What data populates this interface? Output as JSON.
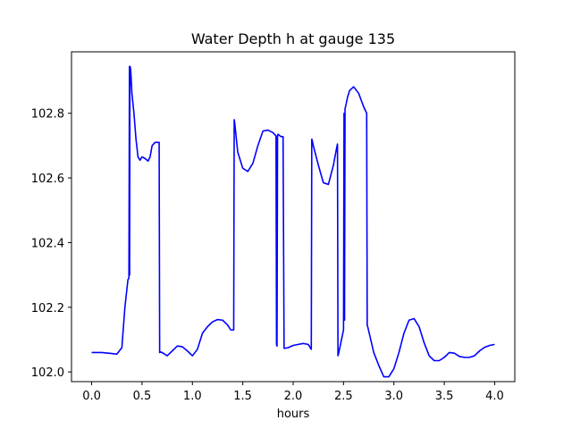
{
  "chart_data": {
    "type": "line",
    "title": "Water Depth h at gauge 135",
    "xlabel": "hours",
    "ylabel": "",
    "xlim": [
      -0.2,
      4.2
    ],
    "ylim": [
      101.97,
      102.99
    ],
    "xticks": [
      0.0,
      0.5,
      1.0,
      1.5,
      2.0,
      2.5,
      3.0,
      3.5,
      4.0
    ],
    "xtick_labels": [
      "0.0",
      "0.5",
      "1.0",
      "1.5",
      "2.0",
      "2.5",
      "3.0",
      "3.5",
      "4.0"
    ],
    "yticks": [
      102.0,
      102.2,
      102.4,
      102.6,
      102.8
    ],
    "ytick_labels": [
      "102.0",
      "102.2",
      "102.4",
      "102.6",
      "102.8"
    ],
    "grid": false,
    "series": [
      {
        "color": "#0000ff",
        "x": [
          0.0,
          0.1,
          0.2,
          0.25,
          0.3,
          0.33,
          0.36,
          0.37,
          0.375,
          0.377,
          0.38,
          0.385,
          0.39,
          0.4,
          0.42,
          0.44,
          0.46,
          0.48,
          0.5,
          0.53,
          0.56,
          0.58,
          0.6,
          0.63,
          0.65,
          0.67,
          0.675,
          0.678,
          0.68,
          0.7,
          0.75,
          0.8,
          0.85,
          0.9,
          0.95,
          1.0,
          1.05,
          1.1,
          1.15,
          1.2,
          1.25,
          1.3,
          1.35,
          1.38,
          1.4,
          1.41,
          1.415,
          1.42,
          1.45,
          1.5,
          1.55,
          1.6,
          1.65,
          1.7,
          1.75,
          1.8,
          1.83,
          1.835,
          1.84,
          1.845,
          1.85,
          1.87,
          1.88,
          1.9,
          1.91,
          1.915,
          1.95,
          2.0,
          2.05,
          2.1,
          2.15,
          2.18,
          2.185,
          2.19,
          2.2,
          2.25,
          2.3,
          2.35,
          2.4,
          2.43,
          2.44,
          2.445,
          2.45,
          2.48,
          2.5,
          2.505,
          2.51,
          2.515,
          2.52,
          2.54,
          2.56,
          2.6,
          2.65,
          2.7,
          2.73,
          2.735,
          2.74,
          2.8,
          2.85,
          2.9,
          2.95,
          3.0,
          3.05,
          3.1,
          3.15,
          3.2,
          3.25,
          3.3,
          3.35,
          3.4,
          3.45,
          3.5,
          3.55,
          3.6,
          3.65,
          3.7,
          3.75,
          3.8,
          3.85,
          3.9,
          3.95,
          4.0
        ],
        "y": [
          102.06,
          102.06,
          102.057,
          102.055,
          102.075,
          102.2,
          102.285,
          102.29,
          102.945,
          102.3,
          102.945,
          102.94,
          102.92,
          102.86,
          102.8,
          102.72,
          102.665,
          102.655,
          102.665,
          102.66,
          102.652,
          102.665,
          102.7,
          102.71,
          102.71,
          102.71,
          102.06,
          102.06,
          102.062,
          102.06,
          102.05,
          102.065,
          102.08,
          102.078,
          102.065,
          102.05,
          102.07,
          102.12,
          102.14,
          102.155,
          102.162,
          102.16,
          102.145,
          102.13,
          102.13,
          102.13,
          102.78,
          102.77,
          102.68,
          102.63,
          102.62,
          102.645,
          102.7,
          102.745,
          102.748,
          102.74,
          102.73,
          102.085,
          102.08,
          102.73,
          102.735,
          102.73,
          102.728,
          102.728,
          102.073,
          102.073,
          102.075,
          102.082,
          102.085,
          102.088,
          102.085,
          102.07,
          102.72,
          102.715,
          102.7,
          102.64,
          102.585,
          102.58,
          102.64,
          102.69,
          102.705,
          102.05,
          102.055,
          102.1,
          102.13,
          102.8,
          102.16,
          102.815,
          102.82,
          102.85,
          102.87,
          102.882,
          102.862,
          102.82,
          102.8,
          102.145,
          102.14,
          102.06,
          102.02,
          101.985,
          101.985,
          102.01,
          102.06,
          102.12,
          102.16,
          102.165,
          102.14,
          102.09,
          102.05,
          102.035,
          102.035,
          102.045,
          102.06,
          102.058,
          102.048,
          102.045,
          102.045,
          102.05,
          102.065,
          102.076,
          102.082,
          102.085
        ]
      }
    ]
  }
}
